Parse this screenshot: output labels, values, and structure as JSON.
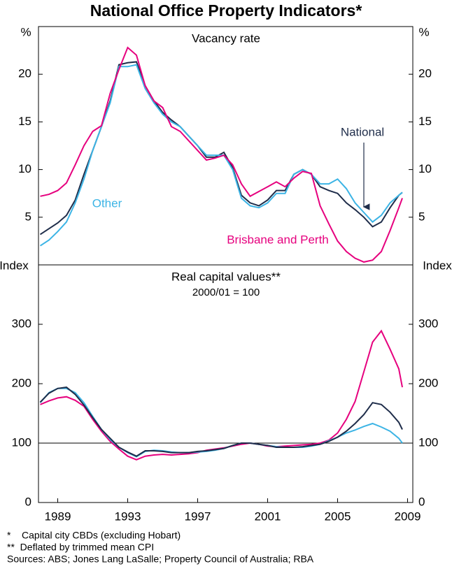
{
  "title": "National Office Property Indicators*",
  "footnotes": [
    "*    Capital city CBDs (excluding Hobart)",
    "**  Deflated by trimmed mean CPI",
    "Sources: ABS; Jones Lang LaSalle; Property Council of Australia; RBA"
  ],
  "chart_data": [
    {
      "type": "line",
      "title": "Vacancy rate",
      "y_unit": "%",
      "xlim": [
        1987.9,
        2009.3
      ],
      "ylim": [
        0,
        25
      ],
      "yticks": [
        5,
        10,
        15,
        20
      ],
      "x": [
        1988,
        1988.5,
        1989,
        1989.5,
        1990,
        1990.5,
        1991,
        1991.5,
        1992,
        1992.5,
        1993,
        1993.5,
        1994,
        1994.5,
        1995,
        1995.5,
        1996,
        1996.5,
        1997,
        1997.5,
        1998,
        1998.5,
        1999,
        1999.5,
        2000,
        2000.5,
        2001,
        2001.5,
        2002,
        2002.5,
        2003,
        2003.5,
        2004,
        2004.5,
        2005,
        2005.5,
        2006,
        2006.5,
        2007,
        2007.5,
        2008,
        2008.5,
        2008.7
      ],
      "series": [
        {
          "name": "National",
          "color": "#1f2d4a",
          "values": [
            3.2,
            3.8,
            4.4,
            5.2,
            6.8,
            9.5,
            12.0,
            14.5,
            17.2,
            21.0,
            21.2,
            21.3,
            18.8,
            17.2,
            16.0,
            15.2,
            14.5,
            13.5,
            12.5,
            11.3,
            11.3,
            11.8,
            10.2,
            7.3,
            6.5,
            6.2,
            6.8,
            7.8,
            7.8,
            9.5,
            10.0,
            9.5,
            8.2,
            7.8,
            7.5,
            6.5,
            5.8,
            5.0,
            4.0,
            4.5,
            6.0,
            7.3,
            7.6
          ]
        },
        {
          "name": "Other",
          "color": "#3cb4e5",
          "values": [
            2.0,
            2.6,
            3.5,
            4.5,
            6.5,
            9.0,
            12.0,
            14.5,
            17.0,
            20.8,
            20.8,
            21.0,
            18.5,
            17.0,
            15.8,
            15.0,
            14.5,
            13.5,
            12.5,
            11.5,
            11.5,
            11.5,
            10.0,
            7.0,
            6.2,
            6.0,
            6.5,
            7.5,
            7.5,
            9.5,
            10.0,
            9.5,
            8.5,
            8.5,
            9.0,
            8.0,
            6.5,
            5.5,
            4.5,
            5.2,
            6.5,
            7.3,
            7.6
          ]
        },
        {
          "name": "Brisbane and Perth",
          "color": "#e6007e",
          "values": [
            7.2,
            7.4,
            7.8,
            8.6,
            10.5,
            12.5,
            14.0,
            14.6,
            18.0,
            20.5,
            22.8,
            22.0,
            18.8,
            17.2,
            16.5,
            14.5,
            14.0,
            13.0,
            12.0,
            11.0,
            11.2,
            11.5,
            10.5,
            8.5,
            7.2,
            7.7,
            8.2,
            8.7,
            8.2,
            9.1,
            9.8,
            9.6,
            6.2,
            4.3,
            2.5,
            1.4,
            0.7,
            0.3,
            0.5,
            1.4,
            3.6,
            6.0,
            7.0
          ]
        }
      ]
    },
    {
      "type": "line",
      "title": "Real capital values**",
      "subtitle": "2000/01 = 100",
      "y_unit": "Index",
      "xlim": [
        1987.9,
        2009.3
      ],
      "ylim": [
        0,
        400
      ],
      "yticks": [
        0,
        100,
        200,
        300
      ],
      "xticks": [
        1989,
        1993,
        1997,
        2001,
        2005,
        2009
      ],
      "reference_line": 100,
      "x": [
        1988,
        1988.5,
        1989,
        1989.5,
        1990,
        1990.5,
        1991,
        1991.5,
        1992,
        1992.5,
        1993,
        1993.5,
        1994,
        1994.5,
        1995,
        1995.5,
        1996,
        1996.5,
        1997,
        1997.5,
        1998,
        1998.5,
        1999,
        1999.5,
        2000,
        2000.5,
        2001,
        2001.5,
        2002,
        2002.5,
        2003,
        2003.5,
        2004,
        2004.5,
        2005,
        2005.5,
        2006,
        2006.5,
        2007,
        2007.5,
        2008,
        2008.5,
        2008.7
      ],
      "series": [
        {
          "color": "#e6007e",
          "values": [
            165,
            171,
            176,
            178,
            172,
            162,
            140,
            120,
            103,
            90,
            78,
            72,
            78,
            80,
            81,
            80,
            81,
            82,
            84,
            88,
            90,
            92,
            95,
            98,
            100,
            98,
            95,
            94,
            95,
            96,
            97,
            98,
            100,
            105,
            117,
            140,
            170,
            220,
            270,
            289,
            258,
            225,
            194
          ]
        },
        {
          "color": "#3cb4e5",
          "values": [
            168,
            185,
            192,
            192,
            185,
            168,
            145,
            123,
            106,
            93,
            84,
            77,
            86,
            88,
            87,
            85,
            84,
            84,
            85,
            86,
            88,
            91,
            96,
            100,
            100,
            98,
            96,
            94,
            93,
            93,
            93,
            95,
            98,
            104,
            110,
            117,
            122,
            128,
            133,
            127,
            120,
            108,
            100
          ]
        },
        {
          "color": "#1f2d4a",
          "values": [
            169,
            184,
            192,
            194,
            182,
            164,
            143,
            123,
            108,
            93,
            85,
            78,
            87,
            87,
            86,
            84,
            84,
            84,
            86,
            87,
            89,
            91,
            96,
            100,
            100,
            98,
            96,
            93,
            93,
            93,
            94,
            96,
            98,
            103,
            110,
            120,
            133,
            148,
            168,
            165,
            152,
            135,
            123
          ]
        }
      ]
    }
  ]
}
